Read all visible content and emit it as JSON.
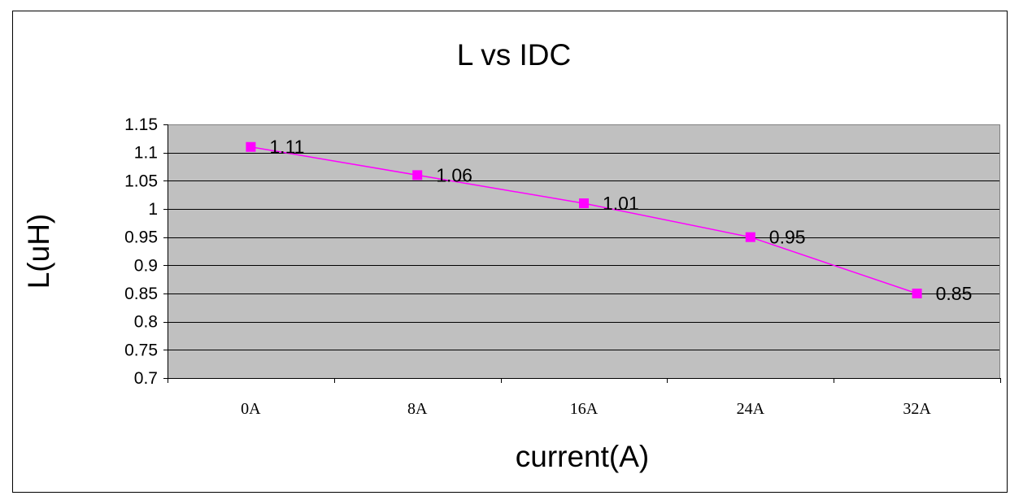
{
  "chart_data": {
    "type": "line",
    "title": "L vs IDC",
    "xlabel": "current(A)",
    "ylabel": "L(uH)",
    "categories": [
      "0A",
      "8A",
      "16A",
      "24A",
      "32A"
    ],
    "series": [
      {
        "values": [
          1.11,
          1.06,
          1.01,
          0.95,
          0.85
        ],
        "color": "#ff00ff"
      }
    ],
    "data_labels": [
      "1.11",
      "1.06",
      "1.01",
      "0.95",
      "0.85"
    ],
    "ylim": [
      0.7,
      1.15
    ],
    "yticks": [
      0.7,
      0.75,
      0.8,
      0.85,
      0.9,
      0.95,
      1,
      1.05,
      1.1,
      1.15
    ],
    "ytick_labels": [
      "0.7",
      "0.75",
      "0.8",
      "0.85",
      "0.9",
      "0.95",
      "1",
      "1.05",
      "1.1",
      "1.15"
    ],
    "grid": true,
    "legend": "none",
    "plot_background": "#c0c0c0"
  }
}
